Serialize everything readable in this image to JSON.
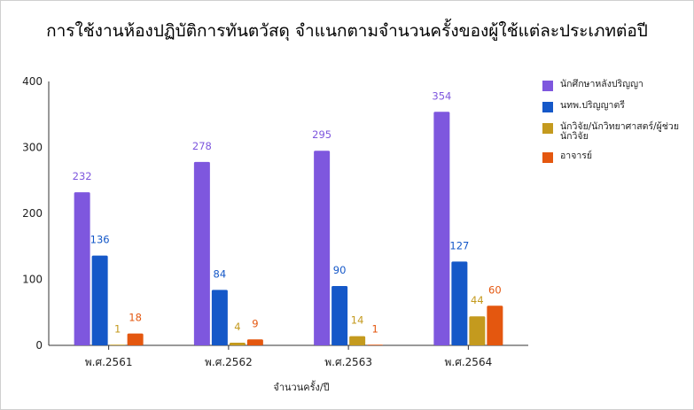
{
  "chart_data": {
    "type": "bar",
    "title": "การใช้งานห้องปฏิบัติการทันตวัสดุ จำแนกตามจำนวนครั้งของผู้ใช้แต่ละประเภทต่อปี",
    "xlabel": "จำนวนครั้ง/ปี",
    "ylabel": "",
    "ylim": [
      0,
      400
    ],
    "yticks": [
      0,
      100,
      200,
      300,
      400
    ],
    "grid": false,
    "legend_position": "right",
    "categories": [
      "พ.ศ.2561",
      "พ.ศ.2562",
      "พ.ศ.2563",
      "พ.ศ.2564"
    ],
    "series": [
      {
        "name": "นักศึกษาหลังปริญญา",
        "color": "#7E57DE",
        "label_color": "#7E57DE",
        "values": [
          232,
          278,
          295,
          354
        ]
      },
      {
        "name": "นทพ.ปริญญาตรี",
        "color": "#1558C8",
        "label_color": "#1558C8",
        "values": [
          136,
          84,
          90,
          127
        ]
      },
      {
        "name": "นักวิจัย/นักวิทยาศาสตร์/ผู้ช่วยนักวิจัย",
        "color": "#C49A1E",
        "label_color": "#C49A1E",
        "values": [
          1,
          4,
          14,
          44
        ]
      },
      {
        "name": "อาจารย์",
        "color": "#E4570F",
        "label_color": "#E4570F",
        "values": [
          18,
          9,
          1,
          60
        ]
      }
    ]
  }
}
